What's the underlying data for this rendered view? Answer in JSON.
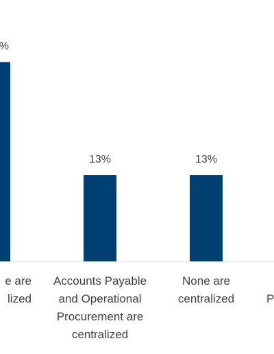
{
  "chart_data": {
    "type": "bar",
    "categories": [
      "e are\nlized",
      "Accounts Payable\nand Operational\nProcurement are\ncentralized",
      "None are\ncentralized",
      "\nP"
    ],
    "values": [
      30,
      13,
      13,
      null
    ],
    "value_labels": [
      "%",
      "13%",
      "13%",
      null
    ],
    "color": "#003f72",
    "ylim": [
      0,
      35
    ]
  }
}
